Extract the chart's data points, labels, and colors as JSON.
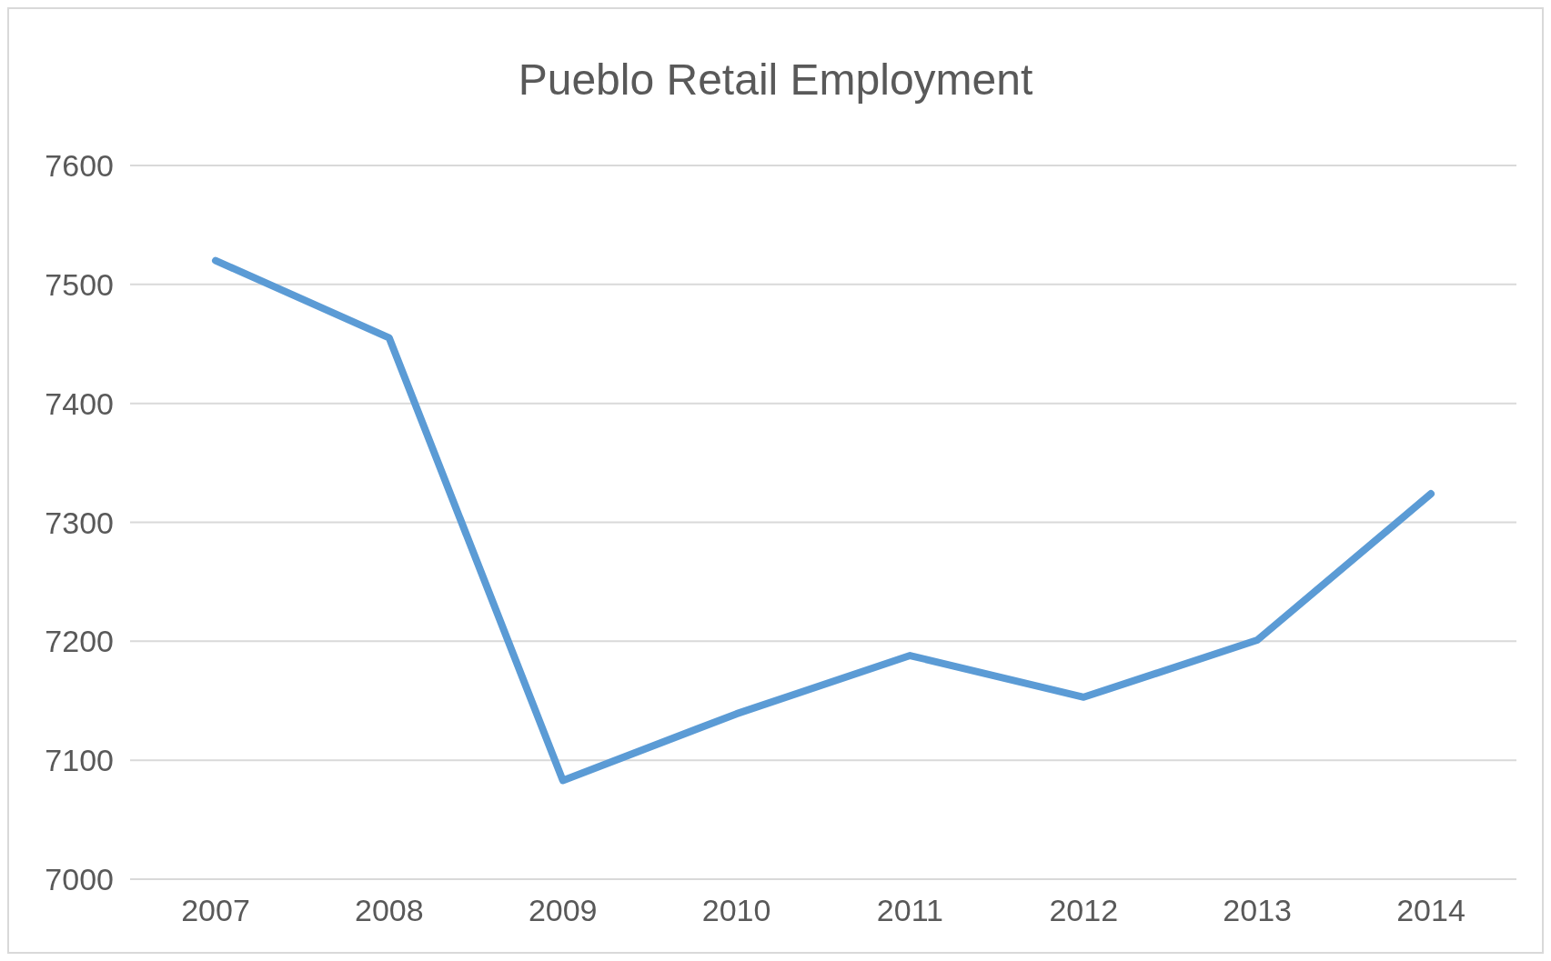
{
  "chart_data": {
    "type": "line",
    "title": "Pueblo Retail Employment",
    "categories": [
      "2007",
      "2008",
      "2009",
      "2010",
      "2011",
      "2012",
      "2013",
      "2014"
    ],
    "series": [
      {
        "color": "#5b9bd5",
        "values": [
          7520,
          7455,
          7083,
          7139,
          7188,
          7153,
          7201,
          7324
        ]
      }
    ],
    "ylim": [
      7000,
      7600
    ],
    "yticks": [
      7000,
      7100,
      7200,
      7300,
      7400,
      7500,
      7600
    ],
    "grid": "y",
    "marker": "none",
    "line_style": "solid"
  }
}
